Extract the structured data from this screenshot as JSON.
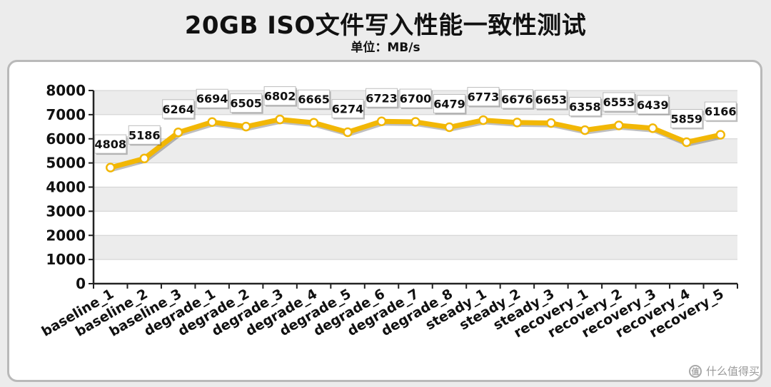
{
  "chart_data": {
    "type": "line",
    "title": "20GB ISO文件写入性能一致性测试",
    "subtitle": "单位：MB/s",
    "categories": [
      "baseline_1",
      "baseline_2",
      "baseline_3",
      "degrade_1",
      "degrade_2",
      "degrade_3",
      "degrade_4",
      "degrade_5",
      "degrade_6",
      "degrade_7",
      "degrade_8",
      "steady_1",
      "steady_2",
      "steady_3",
      "recovery_1",
      "recovery_2",
      "recovery_3",
      "recovery_4",
      "recovery_5"
    ],
    "series": [
      {
        "values": [
          4808,
          5186,
          6264,
          6694,
          6505,
          6802,
          6665,
          6274,
          6723,
          6700,
          6479,
          6773,
          6676,
          6653,
          6358,
          6553,
          6439,
          5859,
          6166
        ]
      }
    ],
    "ylim": [
      0,
      8000
    ],
    "yticks": [
      0,
      1000,
      2000,
      3000,
      4000,
      5000,
      6000,
      7000,
      8000
    ],
    "grid": true,
    "data_labels": true,
    "colors": {
      "line": "#f2b705",
      "marker_fill": "#ffffff",
      "grid_band": "#ececec"
    }
  },
  "watermark": {
    "text": "什么值得买",
    "icon": "值"
  }
}
